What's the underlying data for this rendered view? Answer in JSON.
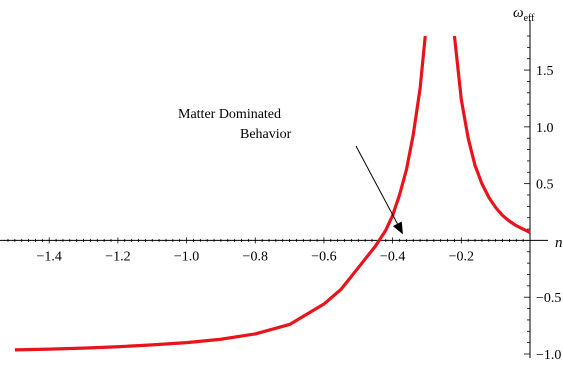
{
  "chart_data": {
    "type": "line",
    "title": "",
    "xlabel": "n",
    "ylabel": "ω",
    "ylabel_sub": "eff",
    "xlim": [
      -1.52,
      0.0
    ],
    "ylim": [
      -1.0,
      1.8
    ],
    "grid": false,
    "x_ticks": [
      -1.4,
      -1.2,
      -1.0,
      -0.8,
      -0.6,
      -0.4,
      -0.2
    ],
    "x_tick_labels": [
      "−1.4",
      "−1.2",
      "−1.0",
      "−0.8",
      "−0.6",
      "−0.4",
      "−0.2"
    ],
    "y_ticks": [
      -1.0,
      -0.5,
      0.5,
      1.0,
      1.5
    ],
    "y_tick_labels": [
      "−1.0",
      "−0.5",
      "0.5",
      "1.0",
      "1.5"
    ],
    "series": [
      {
        "color": "#e8141c",
        "points": [
          [
            -1.5,
            -0.964
          ],
          [
            -1.4,
            -0.957
          ],
          [
            -1.3,
            -0.948
          ],
          [
            -1.2,
            -0.936
          ],
          [
            -1.1,
            -0.92
          ],
          [
            -1.0,
            -0.9
          ],
          [
            -0.9,
            -0.87
          ],
          [
            -0.8,
            -0.823
          ],
          [
            -0.7,
            -0.74
          ],
          [
            -0.6,
            -0.56
          ],
          [
            -0.55,
            -0.43
          ],
          [
            -0.5,
            -0.24
          ],
          [
            -0.45,
            -0.05
          ],
          [
            -0.42,
            0.09
          ],
          [
            -0.4,
            0.22
          ],
          [
            -0.38,
            0.4
          ],
          [
            -0.36,
            0.62
          ],
          [
            -0.34,
            0.93
          ],
          [
            -0.32,
            1.34
          ],
          [
            -0.305,
            1.8
          ]
        ]
      },
      {
        "color": "#e8141c",
        "points": [
          [
            -0.22,
            1.8
          ],
          [
            -0.2,
            1.24
          ],
          [
            -0.18,
            0.9
          ],
          [
            -0.16,
            0.66
          ],
          [
            -0.14,
            0.5
          ],
          [
            -0.12,
            0.38
          ],
          [
            -0.1,
            0.29
          ],
          [
            -0.08,
            0.22
          ],
          [
            -0.06,
            0.17
          ],
          [
            -0.04,
            0.13
          ],
          [
            -0.02,
            0.1
          ],
          [
            0.0,
            0.07
          ]
        ]
      }
    ],
    "annotation": {
      "lines": [
        "Matter Dominated",
        "Behavior"
      ],
      "arrow_to": [
        -0.37,
        0.0
      ]
    }
  }
}
